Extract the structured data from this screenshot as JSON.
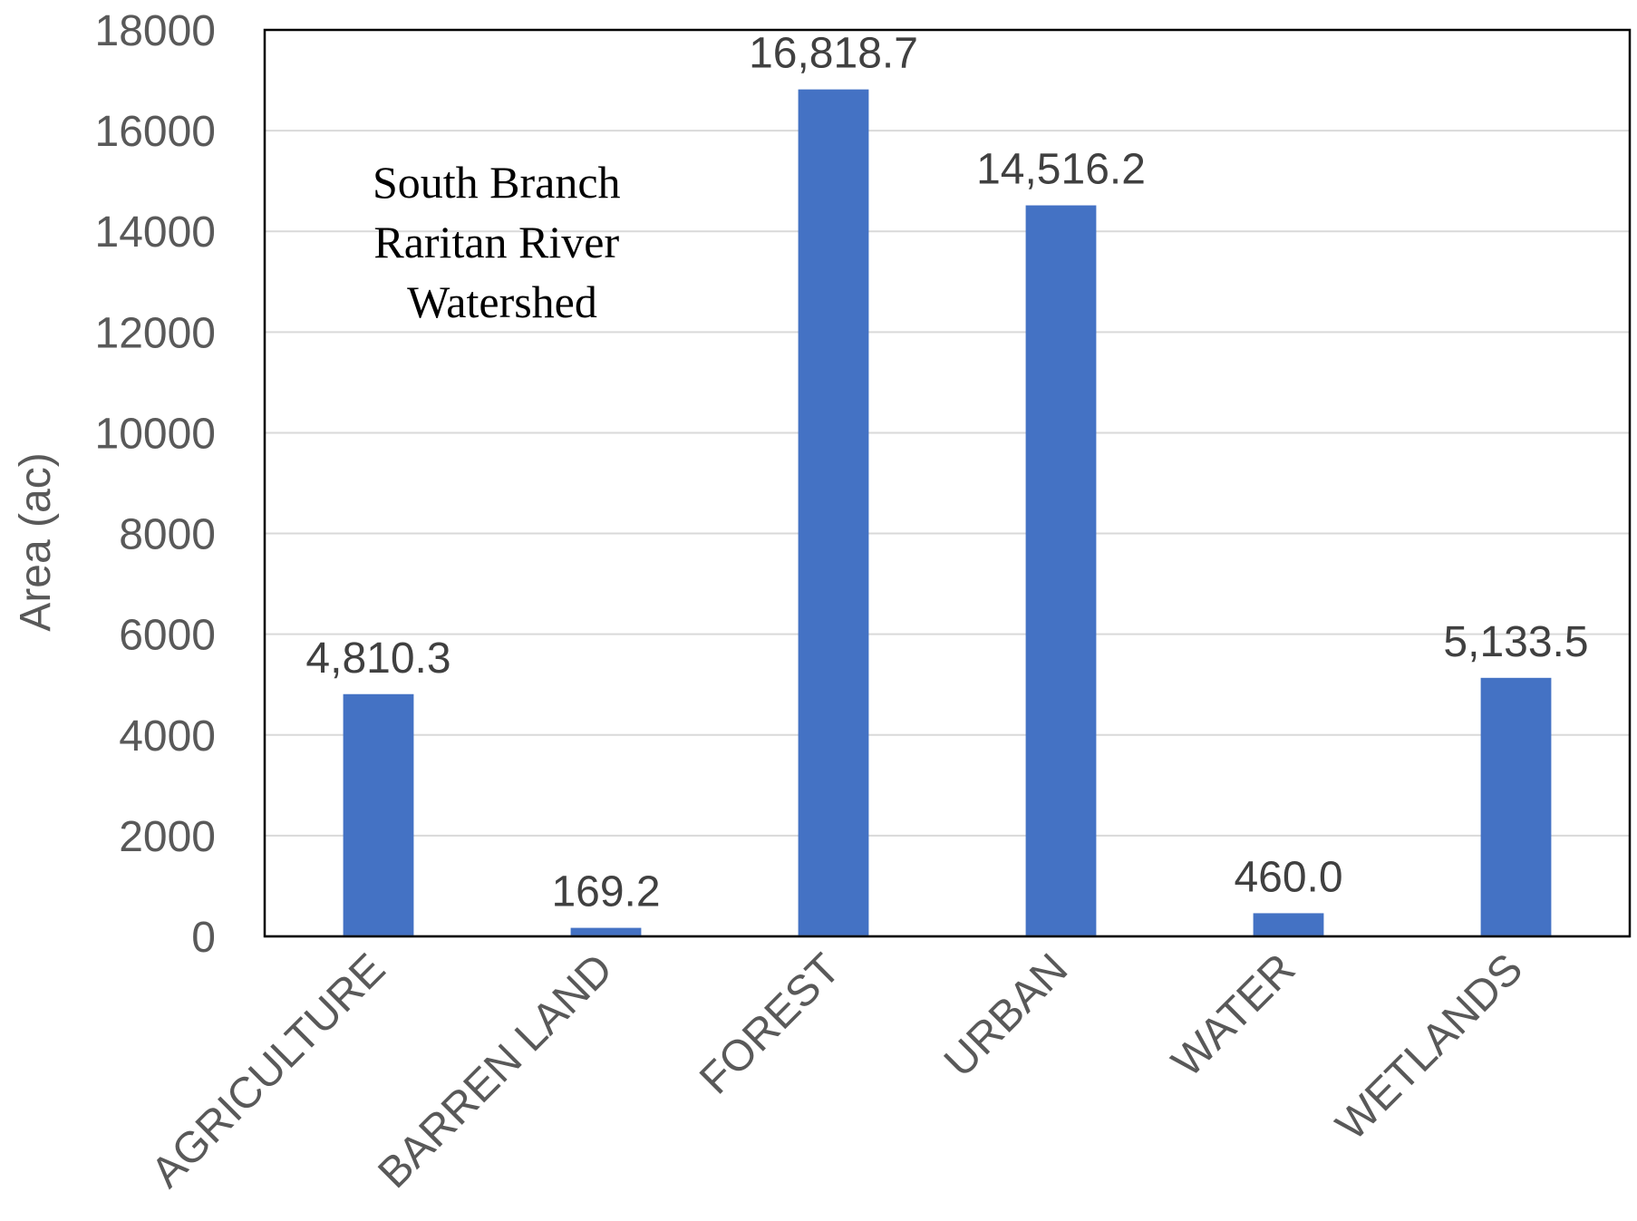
{
  "chart_data": {
    "type": "bar",
    "categories": [
      "AGRICULTURE",
      "BARREN LAND",
      "FOREST",
      "URBAN",
      "WATER",
      "WETLANDS"
    ],
    "values": [
      4810.3,
      169.2,
      16818.7,
      14516.2,
      460.0,
      5133.5
    ],
    "data_labels": [
      "4,810.3",
      "169.2",
      "16,818.7",
      "14,516.2",
      "460.0",
      "5,133.5"
    ],
    "ylabel": "Area (ac)",
    "xlabel": "",
    "ylim": [
      0,
      18000
    ],
    "yticks": [
      0,
      2000,
      4000,
      6000,
      8000,
      10000,
      12000,
      14000,
      16000,
      18000
    ],
    "grid": true,
    "annotation": [
      "South Branch",
      "Raritan River",
      "Watershed"
    ],
    "bar_color": "#4472c4"
  }
}
